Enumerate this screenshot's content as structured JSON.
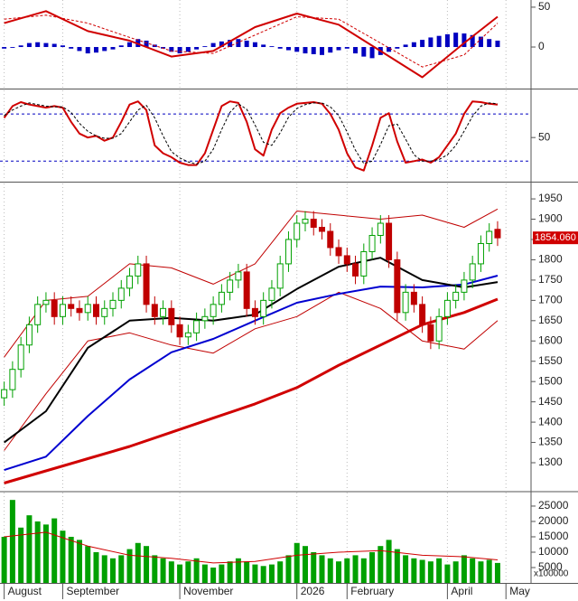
{
  "chart_data": [
    {
      "type": "macd",
      "xlim": [
        -0.5,
        63
      ],
      "ylim": [
        -51,
        59
      ],
      "yticks": [
        50,
        0
      ],
      "series": [
        {
          "style": "bar",
          "color": "#0000c0",
          "values": [
            -2,
            -1,
            2,
            5,
            6,
            5,
            4,
            2,
            -2,
            -5,
            -8,
            -7,
            -5,
            -3,
            2,
            6,
            10,
            8,
            3,
            -2,
            -6,
            -8,
            -6,
            -3,
            1,
            5,
            7,
            9,
            10,
            8,
            6,
            3,
            1,
            -2,
            -4,
            -6,
            -8,
            -9,
            -10,
            -7,
            -4,
            -2,
            -8,
            -12,
            -14,
            -10,
            -6,
            -2,
            3,
            6,
            9,
            12,
            14,
            16,
            18,
            17,
            15,
            13,
            10,
            8
          ]
        },
        {
          "style": "line",
          "color": "#d00000",
          "x": [
            0,
            5,
            10,
            15,
            20,
            25,
            30,
            35,
            40,
            45,
            50,
            55,
            59
          ],
          "values": [
            30,
            45,
            20,
            8,
            -12,
            -5,
            25,
            42,
            28,
            -5,
            -38,
            5,
            38
          ]
        },
        {
          "style": "dashed",
          "color": "#d00000",
          "x": [
            0,
            5,
            10,
            15,
            20,
            25,
            30,
            35,
            40,
            45,
            50,
            55,
            59
          ],
          "values": [
            35,
            40,
            30,
            12,
            -5,
            -8,
            15,
            38,
            35,
            5,
            -25,
            -10,
            30
          ]
        }
      ]
    },
    {
      "type": "stochastic",
      "xlim": [
        -0.5,
        63
      ],
      "ylim": [
        -5,
        110
      ],
      "yticks": [
        50
      ],
      "levels": [
        80,
        20
      ],
      "level_color": "#0000c0",
      "series": [
        {
          "style": "line",
          "color": "#d00000",
          "values": [
            75,
            90,
            95,
            92,
            90,
            88,
            90,
            88,
            70,
            55,
            50,
            52,
            46,
            50,
            70,
            92,
            96,
            85,
            40,
            30,
            25,
            18,
            15,
            15,
            30,
            60,
            90,
            96,
            94,
            70,
            35,
            27,
            60,
            81,
            88,
            93,
            94,
            95,
            93,
            80,
            60,
            30,
            12,
            8,
            40,
            75,
            81,
            45,
            18,
            20,
            22,
            18,
            25,
            40,
            55,
            80,
            96,
            95,
            93,
            92
          ]
        },
        {
          "style": "dashed",
          "color": "#000000",
          "values": [
            78,
            85,
            90,
            94,
            92,
            90,
            89,
            89,
            82,
            68,
            58,
            52,
            49,
            49,
            55,
            70,
            85,
            91,
            75,
            52,
            32,
            24,
            19,
            16,
            20,
            35,
            60,
            82,
            93,
            86,
            66,
            44,
            40,
            56,
            76,
            87,
            92,
            94,
            94,
            89,
            78,
            57,
            34,
            17,
            20,
            41,
            65,
            67,
            48,
            28,
            20,
            20,
            22,
            28,
            40,
            58,
            77,
            90,
            94,
            93
          ]
        }
      ]
    },
    {
      "type": "candlestick",
      "xlim": [
        -0.5,
        63
      ],
      "ylim": [
        1231,
        1988
      ],
      "yticks": [
        1300,
        1350,
        1400,
        1450,
        1500,
        1550,
        1600,
        1650,
        1700,
        1750,
        1800,
        1850,
        1900,
        1950
      ],
      "up_color": "#00a000",
      "down_color": "#c00000",
      "open": [
        1460,
        1480,
        1530,
        1590,
        1640,
        1690,
        1700,
        1660,
        1690,
        1680,
        1670,
        1690,
        1660,
        1680,
        1700,
        1730,
        1760,
        1790,
        1690,
        1660,
        1680,
        1640,
        1610,
        1620,
        1650,
        1660,
        1690,
        1720,
        1750,
        1770,
        1680,
        1660,
        1700,
        1730,
        1790,
        1850,
        1890,
        1900,
        1880,
        1870,
        1830,
        1810,
        1790,
        1760,
        1820,
        1860,
        1890,
        1800,
        1670,
        1720,
        1690,
        1640,
        1600,
        1660,
        1700,
        1720,
        1750,
        1790,
        1840,
        1875
      ],
      "high": [
        1500,
        1550,
        1610,
        1660,
        1710,
        1720,
        1720,
        1710,
        1710,
        1700,
        1710,
        1710,
        1700,
        1720,
        1750,
        1780,
        1810,
        1810,
        1710,
        1700,
        1700,
        1660,
        1640,
        1670,
        1680,
        1710,
        1740,
        1770,
        1790,
        1790,
        1700,
        1720,
        1750,
        1810,
        1870,
        1910,
        1920,
        1920,
        1900,
        1890,
        1850,
        1830,
        1810,
        1840,
        1880,
        1910,
        1910,
        1820,
        1740,
        1740,
        1710,
        1660,
        1680,
        1720,
        1740,
        1770,
        1810,
        1860,
        1890,
        1895
      ],
      "low": [
        1440,
        1460,
        1510,
        1570,
        1620,
        1670,
        1640,
        1640,
        1660,
        1650,
        1650,
        1640,
        1640,
        1660,
        1680,
        1710,
        1740,
        1670,
        1640,
        1640,
        1620,
        1590,
        1590,
        1600,
        1630,
        1640,
        1670,
        1700,
        1730,
        1660,
        1640,
        1640,
        1680,
        1710,
        1770,
        1830,
        1870,
        1860,
        1850,
        1810,
        1790,
        1770,
        1740,
        1740,
        1800,
        1840,
        1780,
        1650,
        1650,
        1670,
        1620,
        1580,
        1580,
        1640,
        1680,
        1700,
        1730,
        1770,
        1820,
        1834
      ],
      "close": [
        1480,
        1530,
        1590,
        1640,
        1690,
        1700,
        1660,
        1690,
        1680,
        1670,
        1690,
        1660,
        1680,
        1700,
        1730,
        1760,
        1790,
        1690,
        1660,
        1680,
        1640,
        1610,
        1620,
        1650,
        1660,
        1690,
        1720,
        1750,
        1770,
        1680,
        1660,
        1700,
        1730,
        1790,
        1850,
        1890,
        1900,
        1880,
        1870,
        1830,
        1810,
        1790,
        1760,
        1820,
        1860,
        1890,
        1800,
        1670,
        1720,
        1690,
        1640,
        1600,
        1660,
        1700,
        1720,
        1750,
        1790,
        1840,
        1870,
        1854.06
      ],
      "last_label": {
        "value": 1854.06,
        "label": "1854.060"
      },
      "last_color": "#d00000",
      "series": [
        {
          "style": "thin",
          "color": "#c00000",
          "x": [
            0,
            5,
            10,
            15,
            20,
            25,
            30,
            35,
            40,
            45,
            50,
            55,
            59
          ],
          "values": [
            1560,
            1700,
            1710,
            1790,
            1780,
            1740,
            1790,
            1920,
            1910,
            1900,
            1910,
            1880,
            1925
          ]
        },
        {
          "style": "thin",
          "color": "#c00000",
          "x": [
            0,
            5,
            10,
            15,
            20,
            25,
            30,
            35,
            40,
            45,
            50,
            55,
            59
          ],
          "values": [
            1330,
            1470,
            1600,
            1620,
            1590,
            1570,
            1630,
            1660,
            1720,
            1680,
            1600,
            1580,
            1650
          ]
        },
        {
          "style": "heavy",
          "color": "#d00000",
          "x": [
            0,
            5,
            10,
            15,
            20,
            25,
            30,
            35,
            40,
            45,
            50,
            55,
            59
          ],
          "values": [
            1250,
            1280,
            1310,
            1340,
            1375,
            1410,
            1445,
            1485,
            1540,
            1590,
            1640,
            1670,
            1703
          ]
        },
        {
          "style": "line",
          "color": "#0000d0",
          "x": [
            0,
            5,
            10,
            15,
            20,
            25,
            30,
            35,
            40,
            45,
            50,
            55,
            59
          ],
          "values": [
            1282,
            1315,
            1415,
            1505,
            1572,
            1605,
            1650,
            1694,
            1716,
            1734,
            1732,
            1739,
            1761
          ]
        },
        {
          "style": "line",
          "color": "#000000",
          "x": [
            0,
            5,
            10,
            15,
            20,
            25,
            30,
            35,
            40,
            45,
            50,
            55,
            59
          ],
          "values": [
            1350,
            1427,
            1583,
            1650,
            1657,
            1650,
            1665,
            1728,
            1783,
            1805,
            1750,
            1732,
            1745
          ]
        }
      ]
    },
    {
      "type": "volume",
      "xlim": [
        -0.5,
        63
      ],
      "ylim": [
        0,
        29400
      ],
      "yticks": [
        25000,
        20000,
        15000,
        10000,
        5000
      ],
      "unit_label": "x100000",
      "series": [
        {
          "style": "bar",
          "color": "#00a000",
          "values": [
            15000,
            27000,
            18000,
            22000,
            20000,
            19000,
            21000,
            17000,
            15000,
            14000,
            12000,
            10000,
            9000,
            8000,
            9000,
            11000,
            13000,
            12000,
            9000,
            8000,
            7000,
            6000,
            7000,
            8000,
            6000,
            5000,
            6000,
            7000,
            8000,
            7000,
            6000,
            5500,
            6000,
            7000,
            9000,
            13000,
            12000,
            10000,
            9000,
            8000,
            7000,
            8000,
            9000,
            8000,
            10000,
            12000,
            14000,
            11000,
            9000,
            8000,
            7500,
            7000,
            8000,
            6000,
            7000,
            9000,
            8000,
            7000,
            7500,
            6500
          ]
        },
        {
          "style": "thin",
          "color": "#d00000",
          "x": [
            0,
            5,
            10,
            15,
            20,
            25,
            30,
            35,
            40,
            45,
            50,
            55,
            59
          ],
          "values": [
            15000,
            16500,
            12000,
            9000,
            8000,
            6500,
            7000,
            9000,
            10000,
            10500,
            9000,
            8500,
            7500
          ]
        }
      ],
      "xticks": [
        {
          "value": 0,
          "label": "August"
        },
        {
          "value": 7,
          "label": "September"
        },
        {
          "value": 21,
          "label": "November"
        },
        {
          "value": 35,
          "label": "2026"
        },
        {
          "value": 41,
          "label": "February"
        },
        {
          "value": 53,
          "label": "April"
        },
        {
          "value": 60,
          "label": "May"
        }
      ]
    }
  ]
}
